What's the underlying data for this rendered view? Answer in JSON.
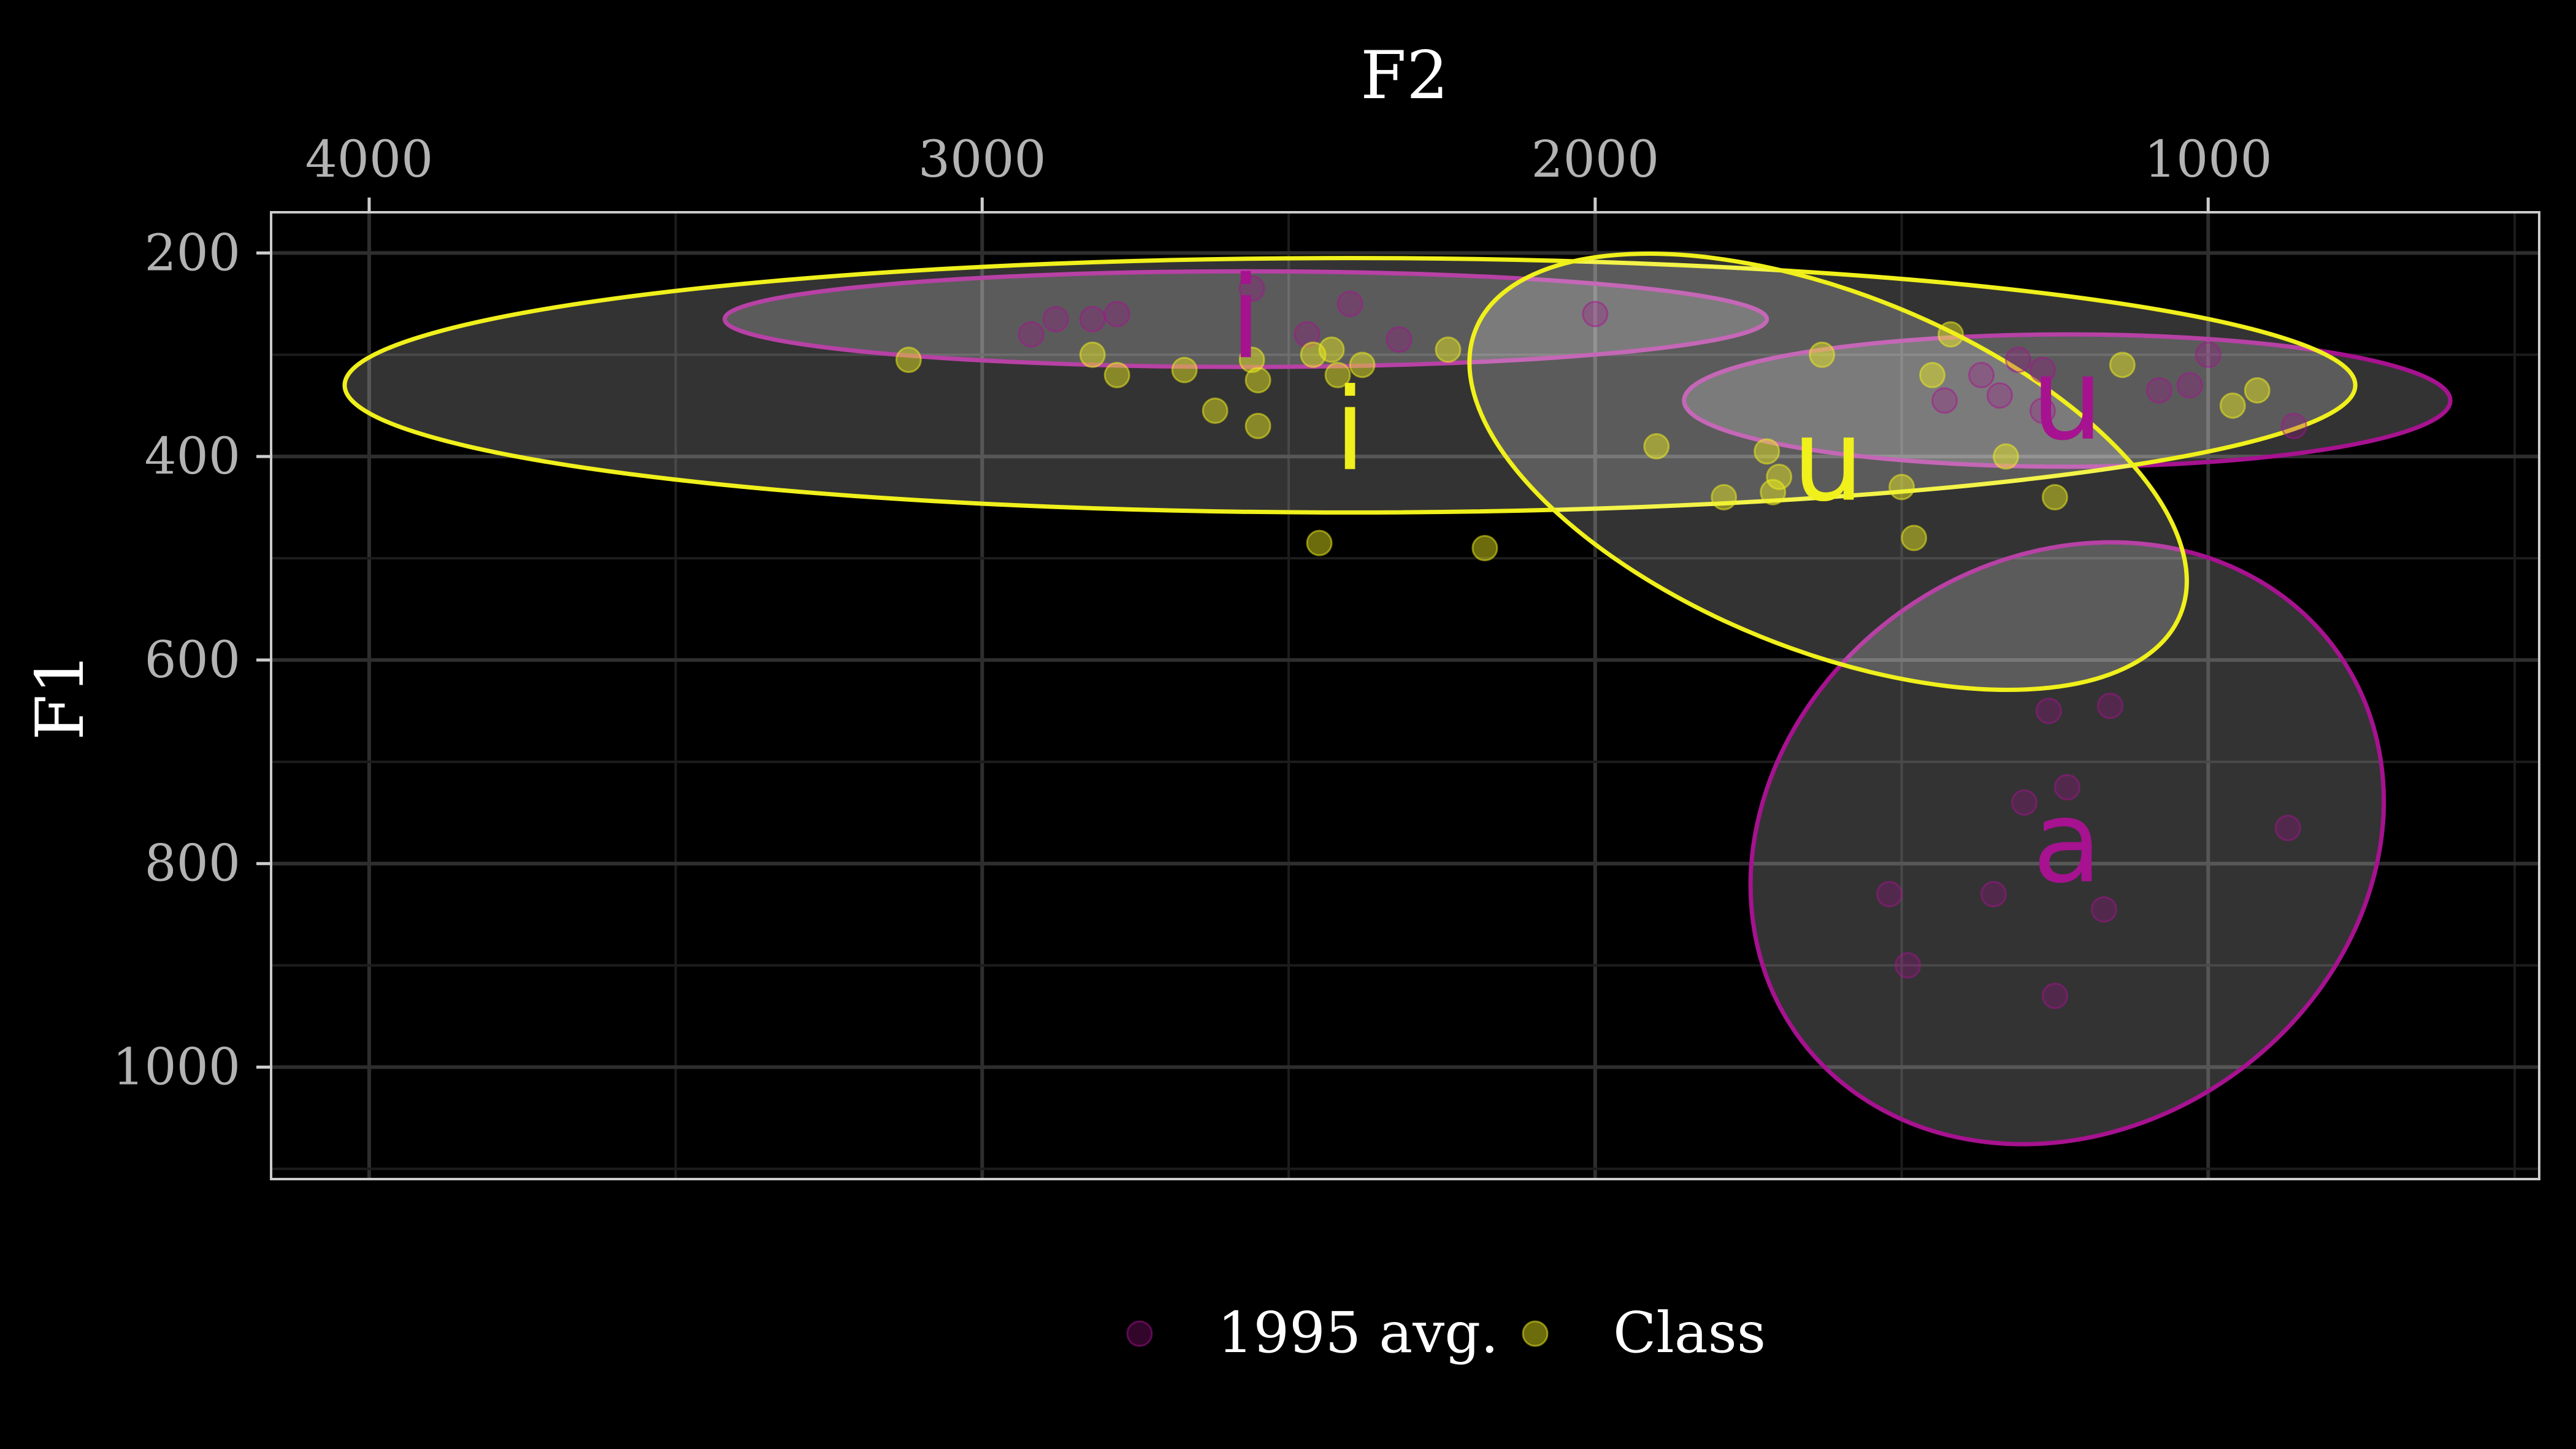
{
  "chart_data": {
    "type": "scatter",
    "xlabel": "F2",
    "ylabel": "F1",
    "x_reversed": true,
    "y_reversed": true,
    "x_axis_position": "top",
    "xlim": [
      4160,
      460
    ],
    "ylim": [
      160,
      1110
    ],
    "x_ticks": [
      4000,
      3000,
      2000,
      1000
    ],
    "x_tick_labels": [
      "4000",
      "3000",
      "2000",
      "1000"
    ],
    "y_ticks": [
      200,
      400,
      600,
      800,
      1000
    ],
    "y_tick_labels": [
      "200",
      "400",
      "600",
      "800",
      "1000"
    ],
    "grid": true,
    "legend_position": "bottom",
    "series": [
      {
        "name": "1995 avg.",
        "color": "#a6128f",
        "points": [
          [
            2920,
            280
          ],
          [
            2880,
            265
          ],
          [
            2820,
            265
          ],
          [
            2780,
            260
          ],
          [
            2560,
            235
          ],
          [
            2470,
            280
          ],
          [
            2400,
            250
          ],
          [
            2320,
            285
          ],
          [
            2000,
            260
          ],
          [
            1430,
            345
          ],
          [
            1370,
            320
          ],
          [
            1340,
            340
          ],
          [
            1310,
            305
          ],
          [
            1270,
            315
          ],
          [
            1270,
            355
          ],
          [
            1080,
            335
          ],
          [
            1030,
            330
          ],
          [
            1000,
            300
          ],
          [
            860,
            370
          ],
          [
            1260,
            650
          ],
          [
            1160,
            645
          ],
          [
            1230,
            725
          ],
          [
            1300,
            740
          ],
          [
            870,
            765
          ],
          [
            1520,
            830
          ],
          [
            1350,
            830
          ],
          [
            1170,
            845
          ],
          [
            1490,
            900
          ],
          [
            1250,
            930
          ]
        ],
        "vowels": [
          {
            "label": "i",
            "mean": [
              2570,
              265
            ],
            "ellipse": {
              "rx": 850,
              "ry": 47,
              "cy": 265,
              "cx": 2570
            }
          },
          {
            "label": "u",
            "mean": [
              1230,
              345
            ],
            "ellipse": {
              "rx": 625,
              "ry": 65,
              "cx": 1230,
              "cy": 345
            }
          },
          {
            "label": "a",
            "mean": [
              1230,
              780
            ],
            "ellipse": {
              "rx": 540,
              "ry": 280,
              "cx": 1230,
              "cy": 780,
              "angle": -35
            }
          }
        ]
      },
      {
        "name": "Class",
        "color": "#f0f01c",
        "points": [
          [
            3120,
            305
          ],
          [
            2820,
            300
          ],
          [
            2780,
            320
          ],
          [
            2670,
            315
          ],
          [
            2620,
            355
          ],
          [
            2560,
            305
          ],
          [
            2550,
            325
          ],
          [
            2550,
            370
          ],
          [
            2460,
            300
          ],
          [
            2430,
            295
          ],
          [
            2420,
            320
          ],
          [
            2380,
            310
          ],
          [
            2240,
            295
          ],
          [
            2450,
            485
          ],
          [
            2180,
            490
          ],
          [
            1900,
            390
          ],
          [
            1720,
            395
          ],
          [
            1700,
            420
          ],
          [
            1710,
            435
          ],
          [
            1790,
            440
          ],
          [
            1630,
            300
          ],
          [
            1500,
            430
          ],
          [
            1450,
            320
          ],
          [
            1420,
            280
          ],
          [
            1140,
            310
          ],
          [
            960,
            350
          ],
          [
            920,
            335
          ],
          [
            1330,
            400
          ],
          [
            1250,
            440
          ],
          [
            1480,
            480
          ]
        ],
        "vowels": [
          {
            "label": "i",
            "mean": [
              2400,
              375
            ],
            "ellipse": {
              "rx": 1640,
              "ry": 125,
              "cx": 2400,
              "cy": 330
            }
          },
          {
            "label": "u",
            "mean": [
              1620,
              405
            ],
            "ellipse": {
              "rx": 620,
              "ry": 175,
              "cx": 1620,
              "cy": 415,
              "angle": 22
            }
          }
        ]
      }
    ]
  }
}
